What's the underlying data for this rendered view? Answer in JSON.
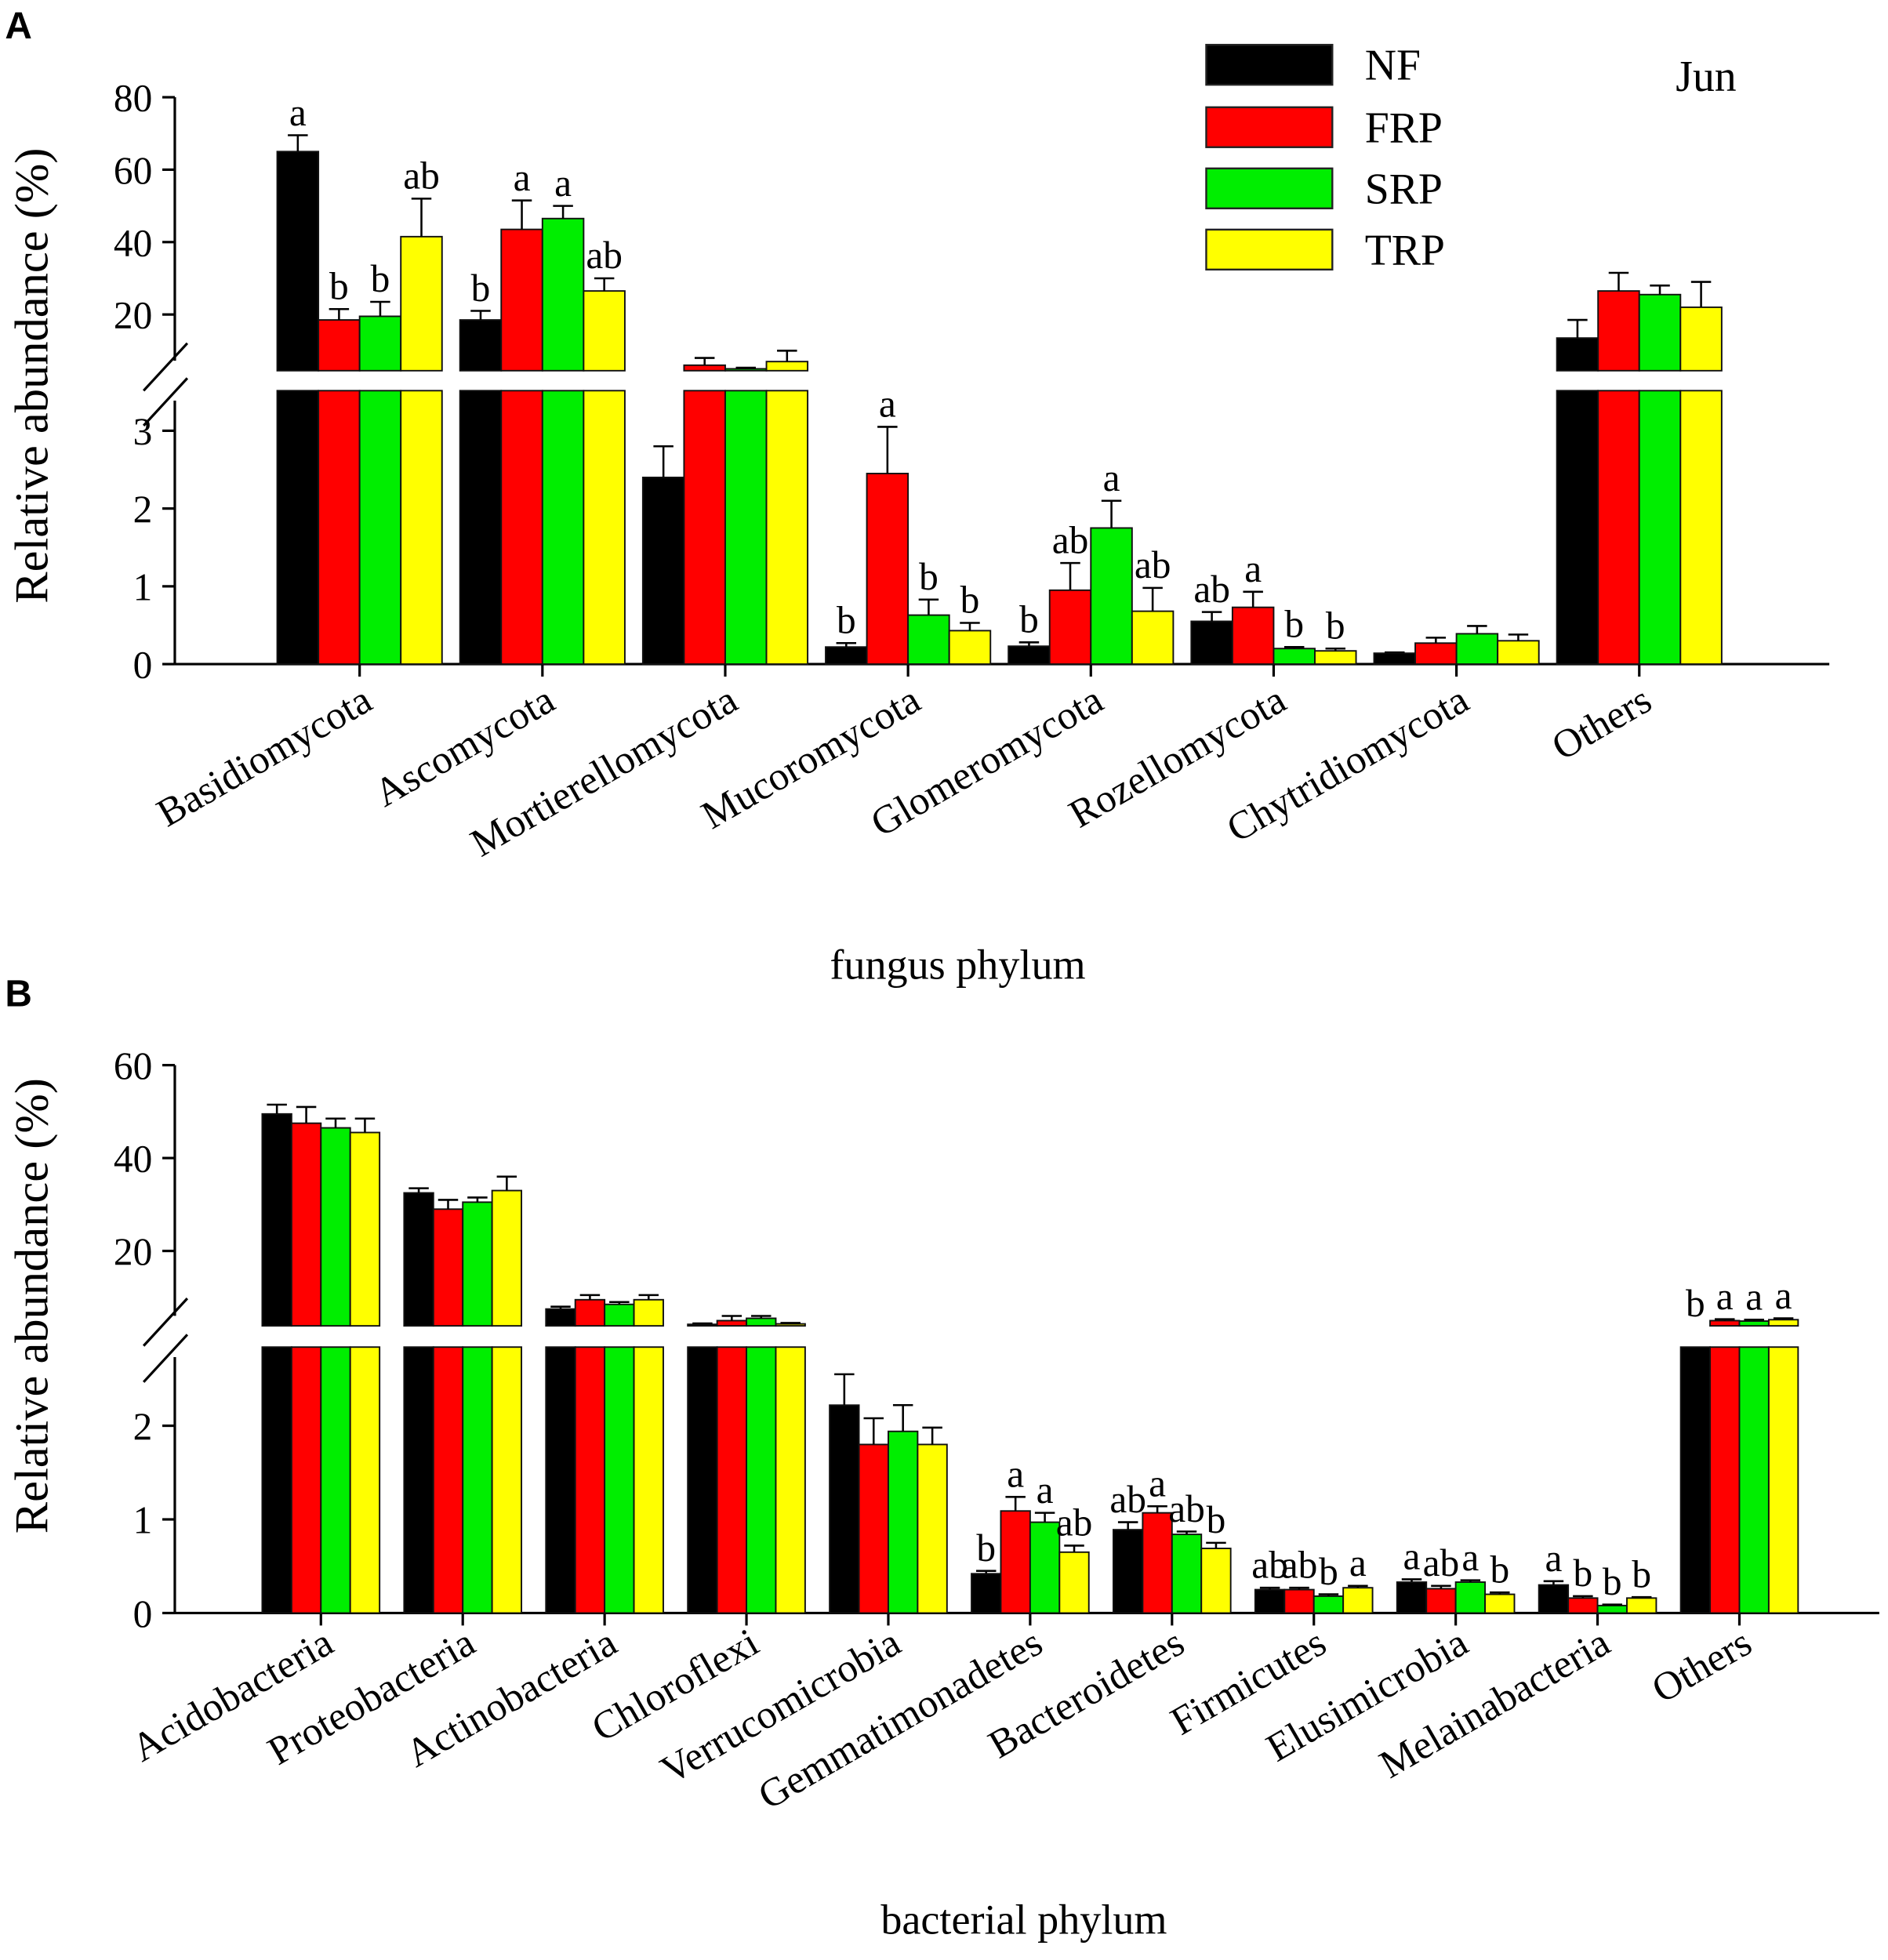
{
  "chart_data": [
    {
      "panel": "A",
      "type": "bar",
      "title": "",
      "annotation": "Jun",
      "xlabel": "fungus phylum",
      "ylabel": "Relative abundance (%)",
      "axis_break": {
        "lower_range": [
          0,
          3.5
        ],
        "upper_range": [
          4.5,
          80
        ]
      },
      "yticks_lower": [
        "0",
        "1",
        "2",
        "3"
      ],
      "yticks_upper": [
        "20",
        "40",
        "60",
        "80"
      ],
      "legend_placement": "top-right",
      "categories": [
        "Basidiomycota",
        "Ascomycota",
        "Mortierellomycota",
        "Mucoromycota",
        "Glomeromycota",
        "Rozellomycota",
        "Chytridiomycota",
        "Others"
      ],
      "series": [
        {
          "name": "NF",
          "color": "#000000",
          "values": [
            65,
            18.5,
            2.4,
            0.22,
            0.23,
            0.55,
            0.14,
            13.5
          ],
          "errors": [
            4.5,
            2.5,
            0.4,
            0.05,
            0.05,
            0.12,
            0.01,
            5
          ],
          "letters": [
            "a",
            "b",
            "",
            "b",
            "b",
            "ab",
            "",
            ""
          ]
        },
        {
          "name": "FRP",
          "color": "#ff0000",
          "values": [
            18.5,
            43.5,
            6,
            2.45,
            0.95,
            0.73,
            0.27,
            26.5
          ],
          "errors": [
            3,
            8,
            2,
            0.6,
            0.35,
            0.2,
            0.07,
            5
          ],
          "letters": [
            "b",
            "a",
            "",
            "a",
            "ab",
            "a",
            "",
            ""
          ]
        },
        {
          "name": "SRP",
          "color": "#00ee00",
          "values": [
            19.5,
            46.5,
            5,
            0.63,
            1.75,
            0.2,
            0.39,
            25.5
          ],
          "errors": [
            4,
            3.5,
            0.3,
            0.2,
            0.35,
            0.02,
            0.1,
            2.5
          ],
          "letters": [
            "b",
            "a",
            "",
            "b",
            "a",
            "b",
            "",
            ""
          ]
        },
        {
          "name": "TRP",
          "color": "#ffff00",
          "values": [
            41.5,
            26.5,
            7,
            0.43,
            0.68,
            0.17,
            0.3,
            22
          ],
          "errors": [
            10.5,
            3.5,
            3,
            0.1,
            0.3,
            0.03,
            0.08,
            7
          ],
          "letters": [
            "ab",
            "ab",
            "",
            "b",
            "ab",
            "b",
            "",
            ""
          ]
        }
      ]
    },
    {
      "panel": "B",
      "type": "bar",
      "title": "",
      "xlabel": "bacterial phylum",
      "ylabel": "Relative abundance (%)",
      "axis_break": {
        "lower_range": [
          0,
          2.84
        ],
        "upper_range": [
          3.9,
          60
        ]
      },
      "yticks_lower": [
        "0",
        "1",
        "2"
      ],
      "yticks_upper": [
        "20",
        "40",
        "60"
      ],
      "categories": [
        "Acidobacteria",
        "Proteobacteria",
        "Actinobacteria",
        "Chloroflexi",
        "Verrucomicrobia",
        "Gemmatimonadetes",
        "Bacteroidetes",
        "Firmicutes",
        "Elusimicrobia",
        "Melainabacteria",
        "Others"
      ],
      "series": [
        {
          "name": "NF",
          "color": "#000000",
          "values": [
            49.5,
            32.5,
            7.5,
            4.2,
            2.22,
            0.42,
            0.89,
            0.25,
            0.33,
            0.3,
            3.8
          ],
          "errors": [
            2,
            1,
            0.5,
            0.2,
            0.33,
            0.03,
            0.08,
            0.02,
            0.03,
            0.04,
            0
          ],
          "letters": [
            "",
            "",
            "",
            "",
            "",
            "b",
            "ab",
            "ab",
            "a",
            "a",
            "b"
          ]
        },
        {
          "name": "FRP",
          "color": "#ff0000",
          "values": [
            47.5,
            29,
            9.5,
            5,
            1.8,
            1.09,
            1.07,
            0.25,
            0.26,
            0.16,
            5
          ],
          "errors": [
            3.5,
            2,
            1,
            1,
            0.28,
            0.15,
            0.07,
            0.02,
            0.03,
            0.02,
            0.3
          ],
          "letters": [
            "",
            "",
            "",
            "",
            "",
            "a",
            "a",
            "ab",
            "ab",
            "b",
            "a"
          ]
        },
        {
          "name": "SRP",
          "color": "#00ee00",
          "values": [
            46.5,
            30.5,
            8.5,
            5.5,
            1.94,
            0.97,
            0.84,
            0.18,
            0.33,
            0.08,
            4.9
          ],
          "errors": [
            2,
            1,
            0.5,
            0.5,
            0.28,
            0.1,
            0.03,
            0.02,
            0.02,
            0.01,
            0.3
          ],
          "letters": [
            "",
            "",
            "",
            "",
            "",
            "a",
            "ab",
            "b",
            "a",
            "b",
            "a"
          ]
        },
        {
          "name": "TRP",
          "color": "#ffff00",
          "values": [
            45.5,
            33,
            9.5,
            4.3,
            1.8,
            0.65,
            0.69,
            0.27,
            0.2,
            0.16,
            5.2
          ],
          "errors": [
            3,
            3,
            1,
            0.2,
            0.18,
            0.07,
            0.06,
            0.02,
            0.02,
            0.01,
            0.3
          ],
          "letters": [
            "",
            "",
            "",
            "",
            "",
            "ab",
            "b",
            "a",
            "b",
            "b",
            "a"
          ]
        }
      ]
    }
  ],
  "panels": {
    "a_letter": "A",
    "b_letter": "B"
  }
}
